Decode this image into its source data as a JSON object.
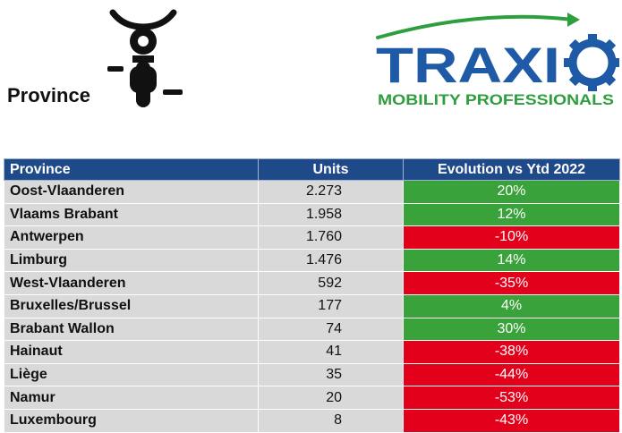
{
  "header": {
    "page_title": "Province",
    "bike_icon": "motorbike-front-icon",
    "logo": {
      "name": "TRAXIO",
      "tagline": "MOBILITY PROFESSIONALS",
      "colors": {
        "blue": "#1f5aa6",
        "green": "#2e9e3e"
      }
    }
  },
  "table": {
    "headers": {
      "province": "Province",
      "units": "Units",
      "evolution": "Evolution vs Ytd 2022"
    },
    "colors": {
      "header_bg": "#1f4a8a",
      "cell_bg": "#d9d9d9",
      "positive": "#3aa23a",
      "negative": "#e2001a"
    },
    "rows": [
      {
        "province": "Oost-Vlaanderen",
        "units": "2.273",
        "evolution": "20%",
        "trend": "positive"
      },
      {
        "province": "Vlaams Brabant",
        "units": "1.958",
        "evolution": "12%",
        "trend": "positive"
      },
      {
        "province": "Antwerpen",
        "units": "1.760",
        "evolution": "-10%",
        "trend": "negative"
      },
      {
        "province": "Limburg",
        "units": "1.476",
        "evolution": "14%",
        "trend": "positive"
      },
      {
        "province": "West-Vlaanderen",
        "units": "592",
        "evolution": "-35%",
        "trend": "negative"
      },
      {
        "province": "Bruxelles/Brussel",
        "units": "177",
        "evolution": "4%",
        "trend": "positive"
      },
      {
        "province": "Brabant Wallon",
        "units": "74",
        "evolution": "30%",
        "trend": "positive"
      },
      {
        "province": "Hainaut",
        "units": "41",
        "evolution": "-38%",
        "trend": "negative"
      },
      {
        "province": "Liège",
        "units": "35",
        "evolution": "-44%",
        "trend": "negative"
      },
      {
        "province": "Namur",
        "units": "20",
        "evolution": "-53%",
        "trend": "negative"
      },
      {
        "province": "Luxembourg",
        "units": "8",
        "evolution": "-43%",
        "trend": "negative"
      }
    ]
  }
}
